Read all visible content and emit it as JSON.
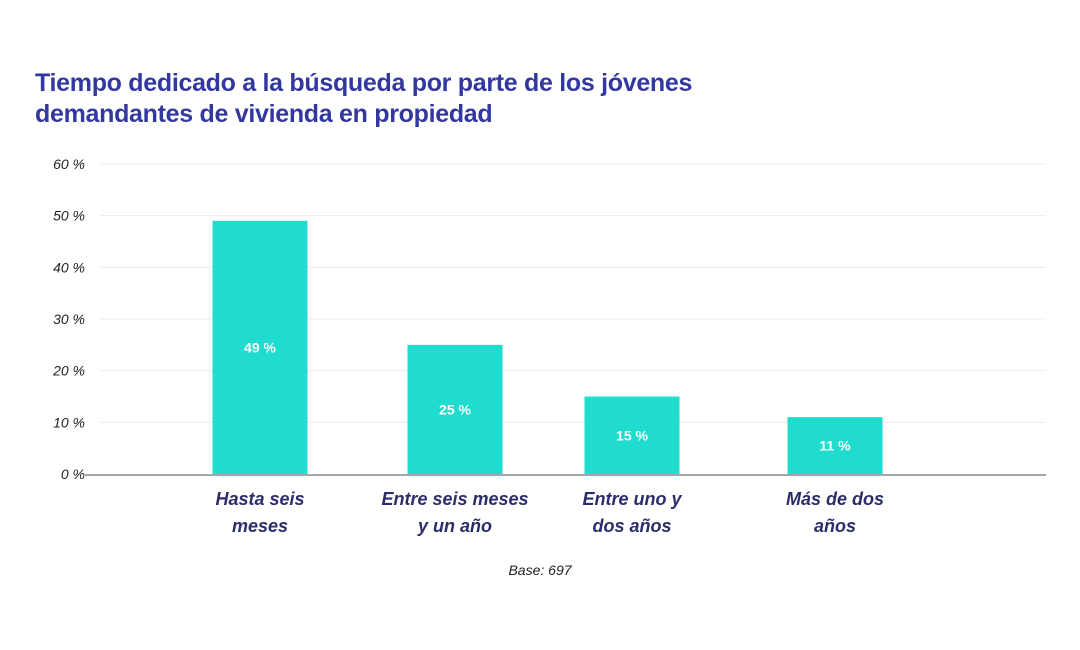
{
  "chart_data": {
    "type": "bar",
    "title_lines": [
      "Tiempo dedicado a la búsqueda por parte de los jóvenes",
      "demandantes de vivienda en propiedad"
    ],
    "categories": [
      [
        "Hasta seis",
        "meses"
      ],
      [
        "Entre seis meses",
        "y un año"
      ],
      [
        "Entre uno y",
        "dos años"
      ],
      [
        "Más de dos",
        "años"
      ]
    ],
    "values": [
      49,
      25,
      15,
      11
    ],
    "data_labels": [
      "49 %",
      "25 %",
      "15 %",
      "11 %"
    ],
    "ylim": [
      0,
      60
    ],
    "yticks": [
      0,
      10,
      20,
      30,
      40,
      50,
      60
    ],
    "ytick_labels": [
      "0 %",
      "10 %",
      "20 %",
      "30 %",
      "40 %",
      "50 %",
      "60 %"
    ],
    "grid": true,
    "legend": "none",
    "footnote": "Base: 697",
    "colors": {
      "bar": "#1fdccf",
      "title": "#3238a0",
      "category": "#2b2e6b"
    }
  }
}
